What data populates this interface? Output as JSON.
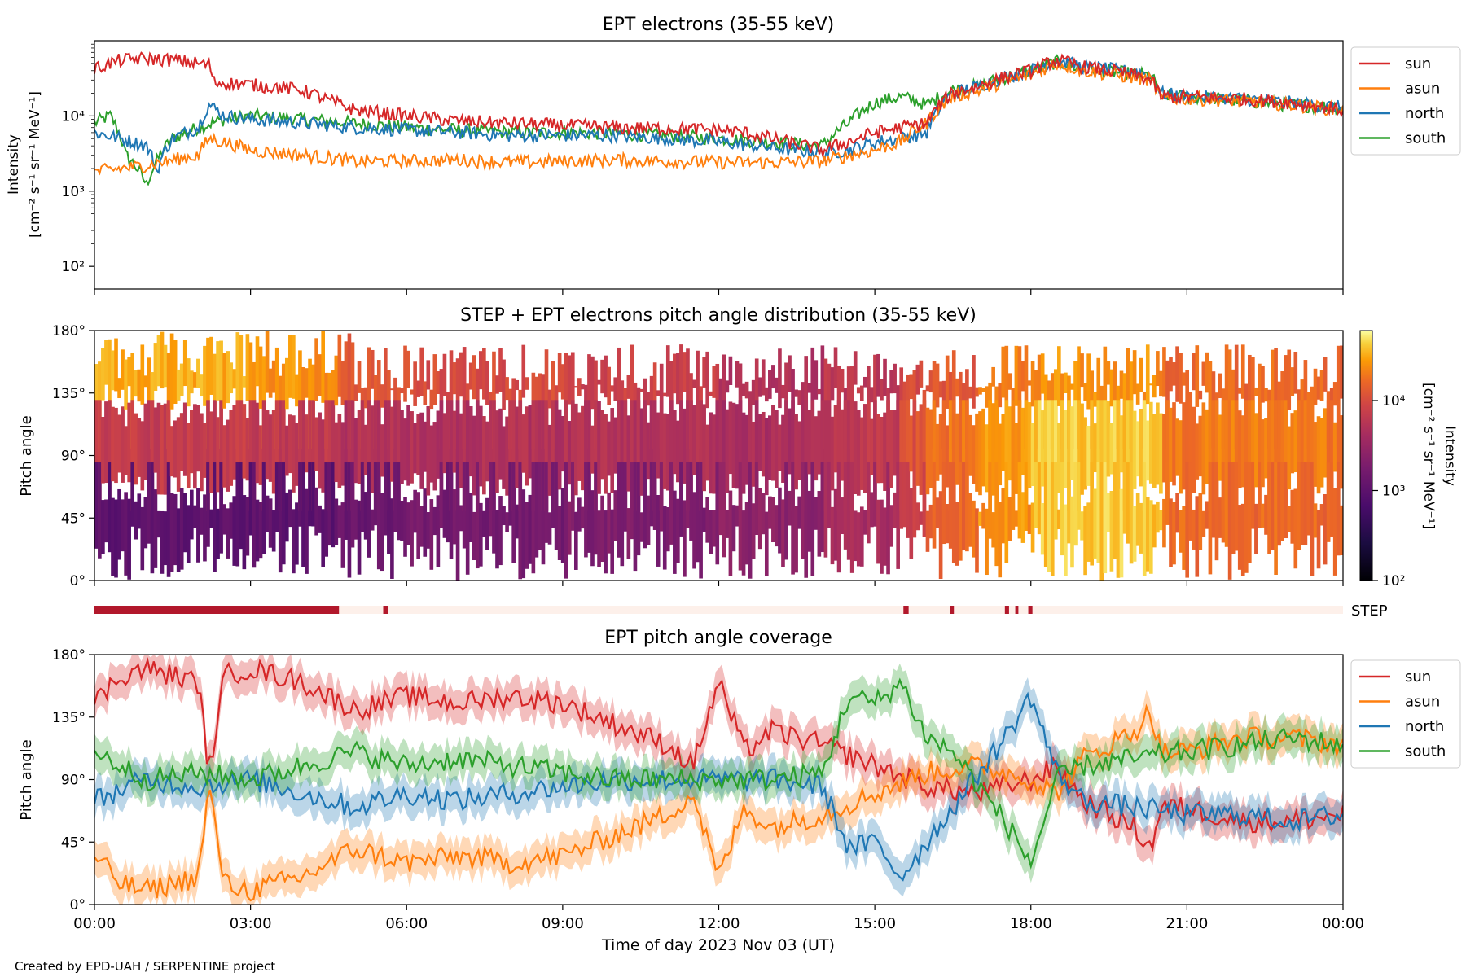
{
  "figure": {
    "credit": "Created by EPD-UAH / SERPENTINE project",
    "xlabel": "Time of day 2023 Nov 03 (UT)",
    "xticks": [
      "00:00",
      "03:00",
      "06:00",
      "09:00",
      "12:00",
      "15:00",
      "18:00",
      "21:00",
      "00:00"
    ]
  },
  "colors": {
    "sun": "#d62728",
    "asun": "#ff7f0e",
    "north": "#1f77b4",
    "south": "#2ca02c",
    "step_bar": "#b2182b",
    "step_bar_bg": "#fdf0ea"
  },
  "panels": {
    "intensity": {
      "title": "EPT electrons (35-55 keV)",
      "ylabel_line1": "Intensity",
      "ylabel_line2": "[cm⁻² s⁻¹ sr⁻¹ MeV⁻¹]",
      "yticks": [
        "10²",
        "10³",
        "10⁴"
      ]
    },
    "pad": {
      "title": "STEP + EPT electrons pitch angle distribution (35-55 keV)",
      "ylabel": "Pitch angle",
      "yticks": [
        "0°",
        "45°",
        "90°",
        "135°",
        "180°"
      ],
      "colorbar_label_line1": "Intensity",
      "colorbar_label_line2": "[cm⁻² s⁻¹ sr⁻¹ MeV⁻¹]",
      "colorbar_ticks": [
        "10²",
        "10³",
        "10⁴"
      ]
    },
    "step_bar": {
      "label": "STEP"
    },
    "coverage": {
      "title": "EPT pitch angle coverage",
      "ylabel": "Pitch angle",
      "yticks": [
        "0°",
        "45°",
        "90°",
        "135°",
        "180°"
      ]
    }
  },
  "legend": [
    "sun",
    "asun",
    "north",
    "south"
  ],
  "chart_data": [
    {
      "type": "line",
      "title": "EPT electrons (35-55 keV)",
      "xlabel": "",
      "ylabel": "Intensity [cm⁻² s⁻¹ sr⁻¹ MeV⁻¹]",
      "yscale": "log",
      "ylim": [
        50,
        100000
      ],
      "xlim_hours": [
        0,
        24
      ],
      "legend_position": "outside-right-top",
      "series": [
        {
          "name": "sun",
          "x": [
            0,
            0.5,
            1,
            1.5,
            2,
            2.2,
            2.3,
            3,
            4,
            4.5,
            5,
            6,
            7,
            8,
            9,
            10,
            11,
            12,
            12.5,
            13,
            13.5,
            14,
            14.5,
            15,
            15.5,
            16,
            16.5,
            17,
            18,
            18.5,
            19,
            20,
            20.3,
            20.5,
            21,
            22,
            23,
            24
          ],
          "y": [
            42000,
            55000,
            58000,
            55000,
            50000,
            48000,
            28000,
            26000,
            22000,
            16000,
            12000,
            10000,
            8500,
            8000,
            7500,
            7000,
            6800,
            6500,
            6000,
            5000,
            4200,
            3500,
            4500,
            6000,
            7000,
            8000,
            20000,
            25000,
            40000,
            55000,
            45000,
            35000,
            30000,
            18000,
            18000,
            17000,
            15000,
            12000
          ]
        },
        {
          "name": "asun",
          "x": [
            0,
            0.5,
            1,
            2,
            2.2,
            3,
            4,
            5,
            6,
            7,
            8,
            9,
            10,
            11,
            12,
            13,
            14,
            14.5,
            15,
            15.5,
            16,
            16.5,
            17,
            18,
            18.5,
            19,
            20,
            20.3,
            20.5,
            21,
            22,
            23,
            24
          ],
          "y": [
            1800,
            2000,
            2200,
            3000,
            5000,
            3500,
            3000,
            2500,
            2500,
            2600,
            2400,
            2500,
            2600,
            2500,
            2400,
            2400,
            2500,
            3000,
            3500,
            4500,
            8000,
            18000,
            22000,
            35000,
            50000,
            40000,
            32000,
            30000,
            17000,
            17000,
            16000,
            14000,
            12000
          ]
        },
        {
          "name": "north",
          "x": [
            0,
            0.5,
            1,
            1.2,
            1.5,
            2,
            2.2,
            2.5,
            3,
            4,
            5,
            6,
            7,
            8,
            9,
            10,
            11,
            12,
            13,
            14,
            14.5,
            15,
            15.5,
            16,
            16.5,
            17,
            18,
            18.5,
            19,
            20,
            20.3,
            20.5,
            21,
            22,
            23,
            24
          ],
          "y": [
            6000,
            5000,
            4000,
            1800,
            5000,
            7000,
            14000,
            10000,
            9000,
            8000,
            7000,
            6500,
            6000,
            5500,
            5500,
            5500,
            5000,
            4500,
            3800,
            3200,
            3500,
            4500,
            5000,
            6000,
            20000,
            25000,
            40000,
            55000,
            45000,
            38000,
            35000,
            20000,
            18000,
            17000,
            15000,
            13000
          ]
        },
        {
          "name": "south",
          "x": [
            0,
            0.3,
            0.6,
            1,
            1.2,
            1.5,
            2,
            2.5,
            3,
            4,
            5,
            6,
            7,
            8,
            9,
            10,
            11,
            12,
            13,
            14,
            14.5,
            15,
            15.5,
            16,
            16.5,
            17,
            18,
            18.5,
            19,
            20,
            20.3,
            20.5,
            21,
            22,
            23,
            24
          ],
          "y": [
            8000,
            10000,
            3000,
            1200,
            2500,
            5000,
            7000,
            9000,
            10000,
            9000,
            8000,
            7000,
            6500,
            6000,
            6000,
            5800,
            5500,
            5000,
            4500,
            4000,
            8000,
            15000,
            18000,
            14000,
            22000,
            25000,
            40000,
            52000,
            42000,
            36000,
            34000,
            19000,
            18000,
            16000,
            14000,
            13000
          ]
        }
      ]
    },
    {
      "type": "heatmap",
      "title": "STEP + EPT electrons pitch angle distribution (35-55 keV)",
      "ylabel": "Pitch angle",
      "ylim": [
        0,
        180
      ],
      "colorbar": {
        "label": "Intensity [cm⁻² s⁻¹ sr⁻¹ MeV⁻¹]",
        "scale": "log",
        "range": [
          100,
          60000
        ],
        "colormap": "inferno"
      },
      "segments_hours": [
        0,
        2,
        3,
        4.7,
        6,
        9,
        12,
        14,
        15.5,
        16,
        17,
        18,
        20.5,
        24
      ],
      "upper_band_log_intensity": [
        4.5,
        4.5,
        4.4,
        4.1,
        4.0,
        3.9,
        3.7,
        3.8,
        4.0,
        4.1,
        4.3,
        4.4,
        4.2
      ],
      "lower_band_log_intensity": [
        3.0,
        3.0,
        3.0,
        3.1,
        3.2,
        3.3,
        3.4,
        3.6,
        3.9,
        4.2,
        4.4,
        4.6,
        4.2
      ]
    },
    {
      "type": "line",
      "title": "EPT pitch angle coverage",
      "ylabel": "Pitch angle",
      "xlabel": "Time of day 2023 Nov 03 (UT)",
      "ylim": [
        0,
        180
      ],
      "xlim_hours": [
        0,
        24
      ],
      "legend_position": "outside-right-top",
      "band_halfwidth_deg": 12,
      "series": [
        {
          "name": "sun",
          "x": [
            0,
            0.5,
            1,
            2,
            2.2,
            2.5,
            3,
            4,
            5,
            6,
            7,
            8,
            9,
            10,
            11,
            11.5,
            12,
            12.5,
            13,
            14,
            15,
            16,
            17,
            18,
            18.5,
            19,
            20,
            20.3,
            20.5,
            21,
            22,
            23,
            24
          ],
          "y": [
            145,
            165,
            170,
            160,
            95,
            165,
            170,
            160,
            140,
            150,
            145,
            150,
            145,
            130,
            115,
            100,
            160,
            110,
            125,
            115,
            100,
            85,
            80,
            90,
            100,
            75,
            55,
            40,
            70,
            70,
            60,
            60,
            65
          ]
        },
        {
          "name": "asun",
          "x": [
            0,
            0.5,
            1,
            2,
            2.2,
            2.5,
            3,
            4,
            5,
            6,
            7,
            8,
            9,
            10,
            11,
            11.5,
            12,
            12.5,
            13,
            14,
            15,
            16,
            17,
            18,
            18.5,
            19,
            20,
            20.3,
            20.5,
            21,
            22,
            23,
            24
          ],
          "y": [
            35,
            15,
            10,
            20,
            85,
            15,
            10,
            20,
            40,
            30,
            35,
            30,
            35,
            50,
            65,
            80,
            20,
            70,
            55,
            65,
            80,
            95,
            100,
            90,
            80,
            105,
            125,
            140,
            110,
            110,
            120,
            120,
            115
          ]
        },
        {
          "name": "north",
          "x": [
            0,
            1,
            2,
            3,
            4,
            5,
            6,
            7,
            8,
            9,
            10,
            11,
            12,
            13,
            14,
            14.5,
            15,
            15.5,
            16,
            16.5,
            17,
            17.5,
            18,
            18.5,
            19,
            20,
            21,
            22,
            23,
            24
          ],
          "y": [
            75,
            90,
            85,
            90,
            80,
            70,
            80,
            75,
            80,
            85,
            90,
            90,
            90,
            90,
            85,
            40,
            45,
            20,
            45,
            70,
            95,
            120,
            150,
            95,
            75,
            70,
            65,
            65,
            60,
            65
          ]
        },
        {
          "name": "south",
          "x": [
            0,
            1,
            2,
            3,
            4,
            5,
            6,
            7,
            8,
            9,
            10,
            11,
            12,
            13,
            14,
            14.5,
            15,
            15.5,
            16,
            16.5,
            17,
            17.5,
            18,
            18.5,
            19,
            20,
            21,
            22,
            23,
            24
          ],
          "y": [
            110,
            90,
            95,
            90,
            100,
            110,
            100,
            105,
            100,
            95,
            90,
            90,
            90,
            90,
            95,
            150,
            145,
            160,
            120,
            110,
            85,
            60,
            30,
            90,
            100,
            105,
            110,
            115,
            120,
            115
          ]
        }
      ]
    }
  ]
}
